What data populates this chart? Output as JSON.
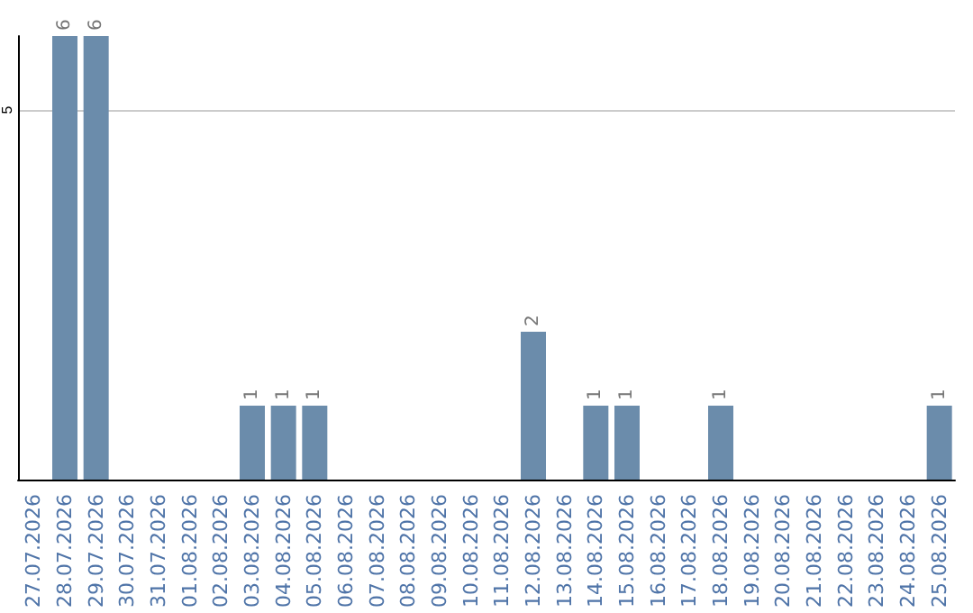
{
  "chart_data": {
    "type": "bar",
    "categories": [
      "27.07.2026",
      "28.07.2026",
      "29.07.2026",
      "30.07.2026",
      "31.07.2026",
      "01.08.2026",
      "02.08.2026",
      "03.08.2026",
      "04.08.2026",
      "05.08.2026",
      "06.08.2026",
      "07.08.2026",
      "08.08.2026",
      "09.08.2026",
      "10.08.2026",
      "11.08.2026",
      "12.08.2026",
      "13.08.2026",
      "14.08.2026",
      "15.08.2026",
      "16.08.2026",
      "17.08.2026",
      "18.08.2026",
      "19.08.2026",
      "20.08.2026",
      "21.08.2026",
      "22.08.2026",
      "23.08.2026",
      "24.08.2026",
      "25.08.2026"
    ],
    "values": [
      null,
      6,
      6,
      null,
      null,
      null,
      null,
      1,
      1,
      1,
      null,
      null,
      null,
      null,
      null,
      null,
      2,
      null,
      1,
      1,
      null,
      null,
      1,
      null,
      null,
      null,
      null,
      null,
      null,
      1
    ],
    "color": "#6b8cab",
    "ylim": [
      0,
      6
    ],
    "yticks": [
      5
    ],
    "grid": "y",
    "data_labels": true
  }
}
